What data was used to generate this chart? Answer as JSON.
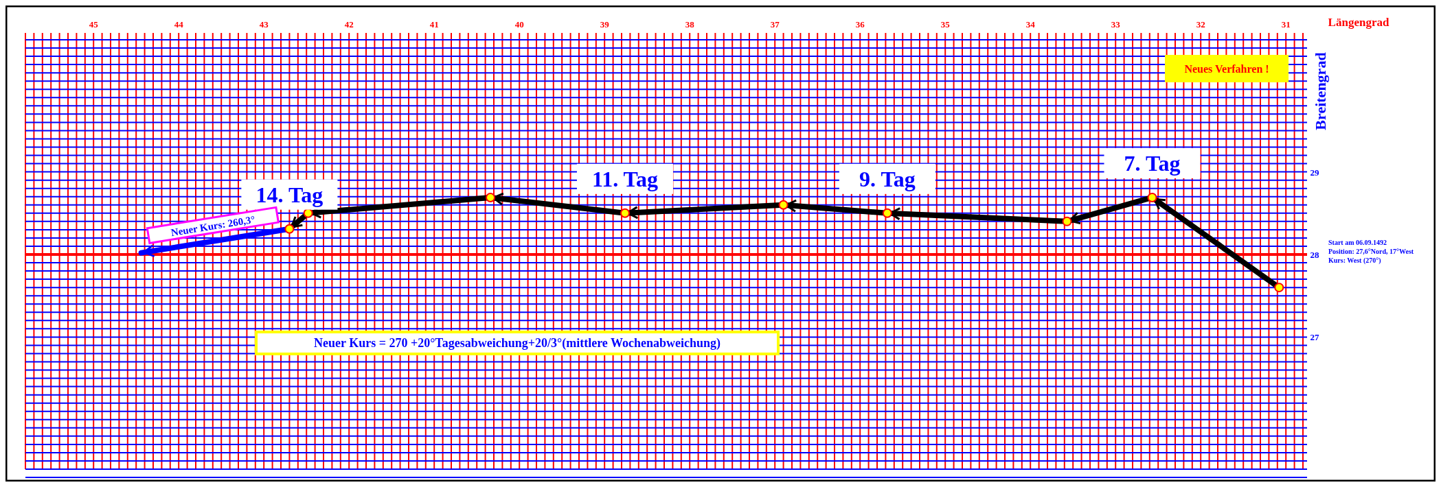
{
  "chart_data": {
    "type": "line",
    "xlabel": "Längengrad",
    "ylabel": "Breitengrad",
    "xlim": [
      45.8,
      30.8
    ],
    "xticks": [
      45,
      44,
      43,
      42,
      41,
      40,
      39,
      38,
      37,
      36,
      35,
      34,
      33,
      32,
      31
    ],
    "ylim": [
      25.4,
      30.6
    ],
    "yticks": [
      27,
      28,
      29
    ],
    "grid": true,
    "marker": "circle",
    "line_style": "solid",
    "ref_lines": [
      {
        "axis": "y",
        "value": 28,
        "color": "#ff0000"
      }
    ],
    "series": [
      {
        "color": "#000000",
        "x": [
          31.08,
          32.57,
          33.57,
          35.68,
          36.9,
          38.76,
          40.34,
          42.48,
          42.7
        ],
        "values": [
          27.6,
          28.69,
          28.4,
          28.5,
          28.6,
          28.5,
          28.69,
          28.5,
          28.31
        ]
      },
      {
        "color": "#0000ff",
        "marker": "none",
        "x": [
          42.7,
          44.44
        ],
        "values": [
          28.31,
          28.02
        ]
      }
    ],
    "annotations": [
      {
        "text": "14. Tag",
        "x": 42.7,
        "y": 28.31
      },
      {
        "text": "11. Tag",
        "x": 38.76,
        "y": 28.5
      },
      {
        "text": "9. Tag",
        "x": 35.68,
        "y": 28.5
      },
      {
        "text": "7. Tag",
        "x": 32.57,
        "y": 28.69
      },
      {
        "text": "Neuer Kurs: 260,3°",
        "x": 43.57,
        "y": 28.165
      },
      "Neues Verfahren !",
      "Neuer Kurs = 270 +20°Tagesabweichung+20/3°(mittlere Wochenabweichung)",
      "Start am 06.09.1492",
      "Position: 27,6°Nord, 17°West",
      "Kurs: West (270°)"
    ]
  }
}
